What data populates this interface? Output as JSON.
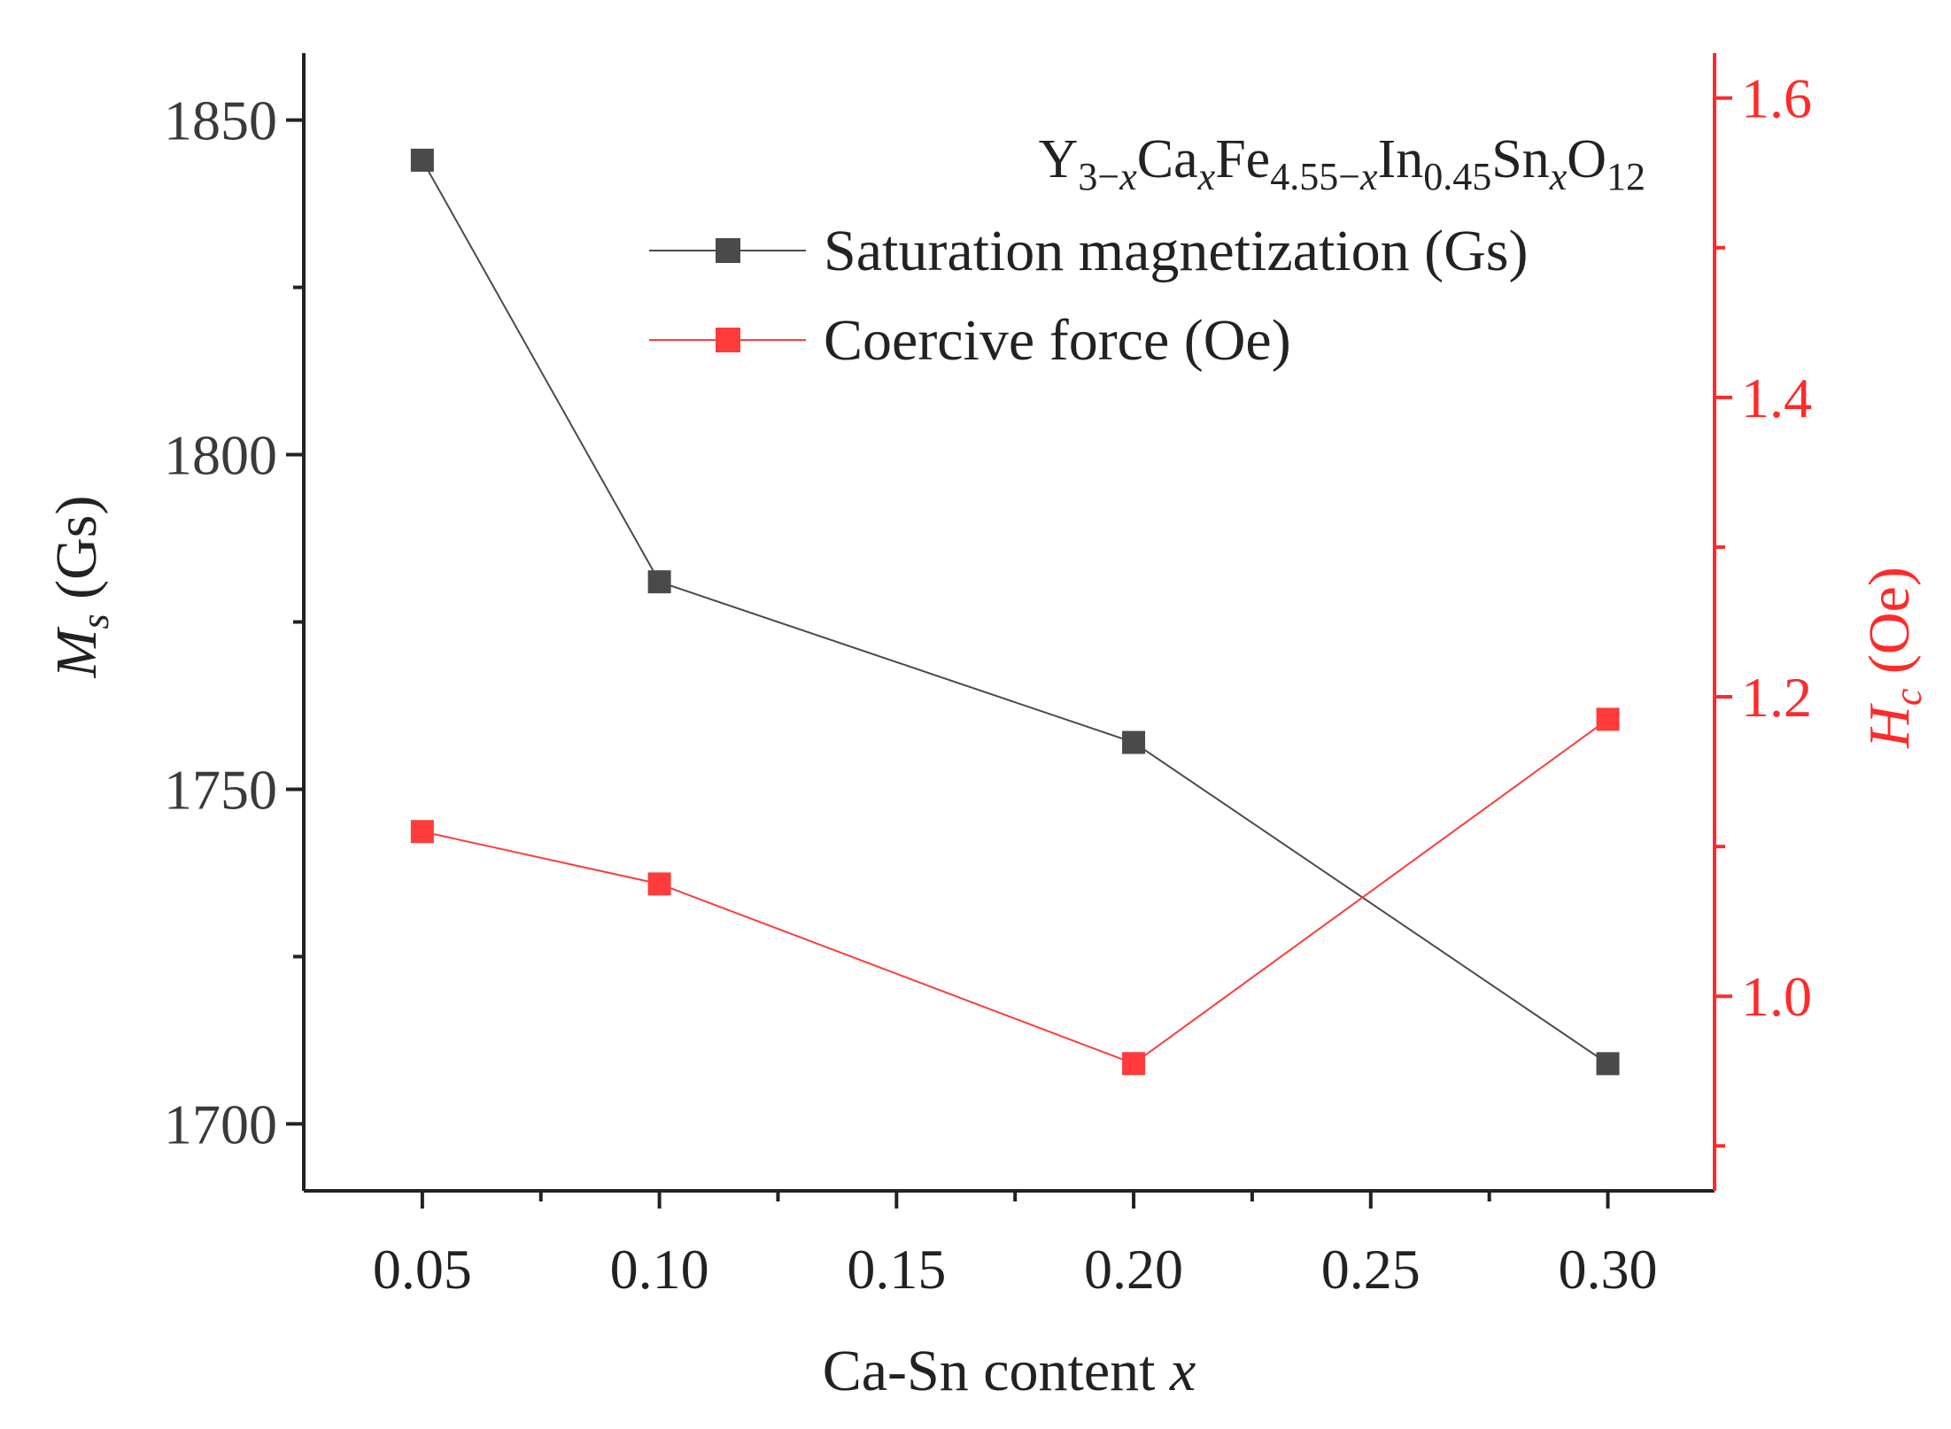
{
  "chart_data": {
    "type": "line",
    "title": "",
    "x": [
      0.05,
      0.1,
      0.2,
      0.3
    ],
    "xlim": [
      0.025,
      0.3225
    ],
    "x_ticks": [
      "0.05",
      "0.10",
      "0.15",
      "0.20",
      "0.25",
      "0.30"
    ],
    "x_tick_values": [
      0.05,
      0.1,
      0.15,
      0.2,
      0.25,
      0.3
    ],
    "xlabel": "Ca-Sn content",
    "xlabel_var": "x",
    "left_axis": {
      "label_main": "M",
      "label_sub": "s",
      "label_unit": " (Gs)",
      "ylim": [
        1690,
        1860
      ],
      "ticks": [
        "1700",
        "1750",
        "1800",
        "1850"
      ],
      "tick_values": [
        1700,
        1750,
        1800,
        1850
      ],
      "color": "#000000"
    },
    "right_axis": {
      "label_main": "H",
      "label_sub": "c",
      "label_unit": " (Oe)",
      "ylim": [
        0.87,
        1.63
      ],
      "ticks": [
        "1.0",
        "1.2",
        "1.4",
        "1.6"
      ],
      "tick_values": [
        1.0,
        1.2,
        1.4,
        1.6
      ],
      "color": "#ff2a2a"
    },
    "series": [
      {
        "name": "Saturation magnetization (Gs)",
        "axis": "left",
        "color": "#4a4a4a",
        "values": [
          1844,
          1781,
          1757,
          1709
        ]
      },
      {
        "name": "Coercive force (Oe)",
        "axis": "right",
        "color": "#ff3b3b",
        "values": [
          1.11,
          1.075,
          0.955,
          1.185
        ]
      }
    ],
    "annotation": {
      "parts": [
        {
          "t": "Y",
          "sub": false
        },
        {
          "t": "3−x",
          "sub": true
        },
        {
          "t": "Ca",
          "sub": false
        },
        {
          "t": "x",
          "sub": true
        },
        {
          "t": "Fe",
          "sub": false
        },
        {
          "t": "4.55−x",
          "sub": true
        },
        {
          "t": "In",
          "sub": false
        },
        {
          "t": "0.45",
          "sub": true
        },
        {
          "t": "Sn",
          "sub": false
        },
        {
          "t": "x",
          "sub": true
        },
        {
          "t": "O",
          "sub": false
        },
        {
          "t": "12",
          "sub": true
        }
      ]
    }
  }
}
